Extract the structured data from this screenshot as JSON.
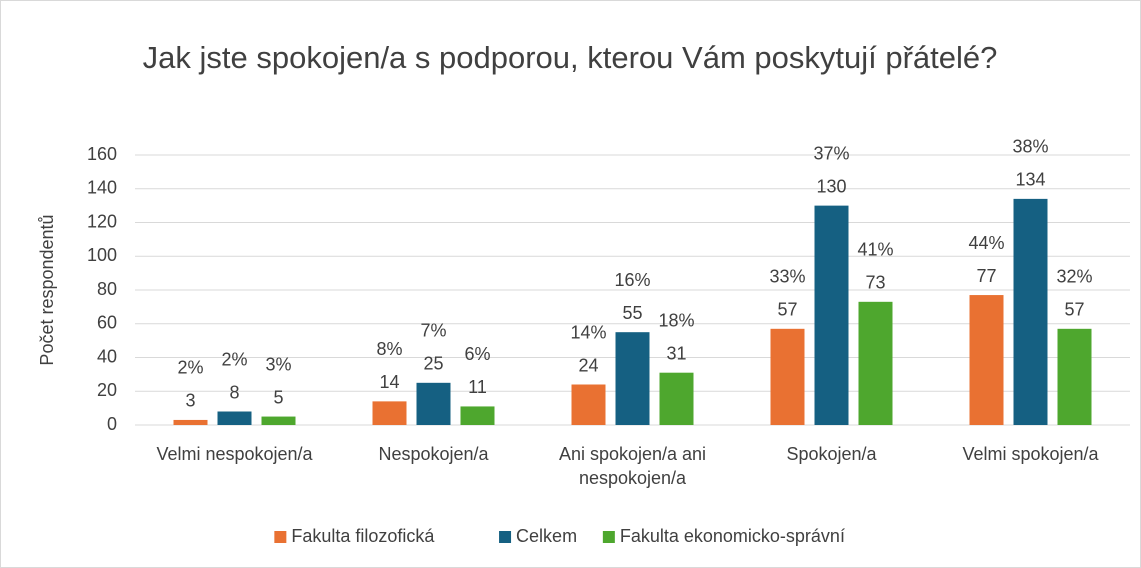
{
  "chart_data": {
    "type": "bar",
    "title": "Jak jste spokojen/a s podporou, kterou Vám poskytují přátelé?",
    "y_label": "Počet respondentů",
    "categories": [
      "Velmi nespokojen/a",
      "Nespokojen/a",
      "Ani spokojen/a ani nespokojen/a",
      "Spokojen/a",
      "Velmi spokojen/a"
    ],
    "series": [
      {
        "name": "Fakulta filozofická",
        "color": "#e97132",
        "values": [
          3,
          14,
          24,
          57,
          77
        ],
        "percent_labels": [
          "2%",
          "8%",
          "14%",
          "33%",
          "44%"
        ]
      },
      {
        "name": "Celkem",
        "color": "#156082",
        "values": [
          8,
          25,
          55,
          130,
          134
        ],
        "percent_labels": [
          "2%",
          "7%",
          "16%",
          "37%",
          "38%"
        ]
      },
      {
        "name": "Fakulta ekonomicko-správní",
        "color": "#4ea72e",
        "values": [
          5,
          11,
          31,
          73,
          57
        ],
        "percent_labels": [
          "3%",
          "6%",
          "18%",
          "41%",
          "32%"
        ]
      }
    ],
    "ylim": [
      0,
      160
    ],
    "yticks": [
      0,
      20,
      40,
      60,
      80,
      100,
      120,
      140,
      160
    ],
    "grid": true,
    "legend": "bottom"
  }
}
